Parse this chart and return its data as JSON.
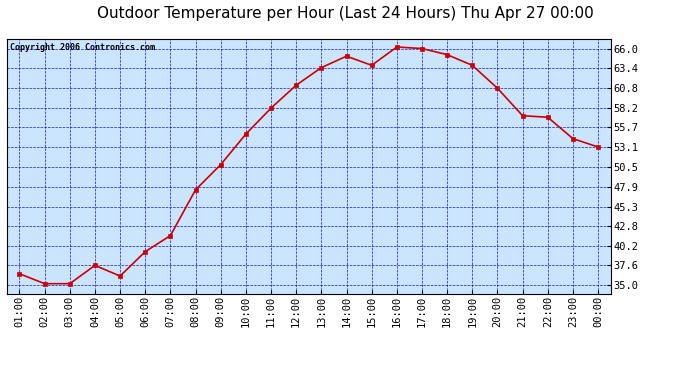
{
  "title": "Outdoor Temperature per Hour (Last 24 Hours) Thu Apr 27 00:00",
  "copyright_text": "Copyright 2006 Contronics.com",
  "hours": [
    "01:00",
    "02:00",
    "03:00",
    "04:00",
    "05:00",
    "06:00",
    "07:00",
    "08:00",
    "09:00",
    "10:00",
    "11:00",
    "12:00",
    "13:00",
    "14:00",
    "15:00",
    "16:00",
    "17:00",
    "18:00",
    "19:00",
    "20:00",
    "21:00",
    "22:00",
    "23:00",
    "00:00"
  ],
  "temps": [
    36.5,
    35.2,
    35.2,
    37.6,
    36.2,
    39.4,
    41.5,
    47.5,
    50.8,
    54.8,
    58.2,
    61.2,
    63.5,
    65.0,
    63.8,
    66.2,
    66.0,
    65.2,
    63.8,
    60.8,
    57.2,
    57.0,
    54.2,
    53.1
  ],
  "line_color": "#cc0000",
  "marker_color": "#cc0000",
  "bg_color": "#cce5ff",
  "outer_bg_color": "#ffffff",
  "grid_color": "#0000cc",
  "y_ticks": [
    35.0,
    37.6,
    40.2,
    42.8,
    45.3,
    47.9,
    50.5,
    53.1,
    55.7,
    58.2,
    60.8,
    63.4,
    66.0
  ],
  "y_min": 33.8,
  "y_max": 67.2,
  "title_fontsize": 11,
  "copyright_fontsize": 6,
  "tick_fontsize": 7.5
}
